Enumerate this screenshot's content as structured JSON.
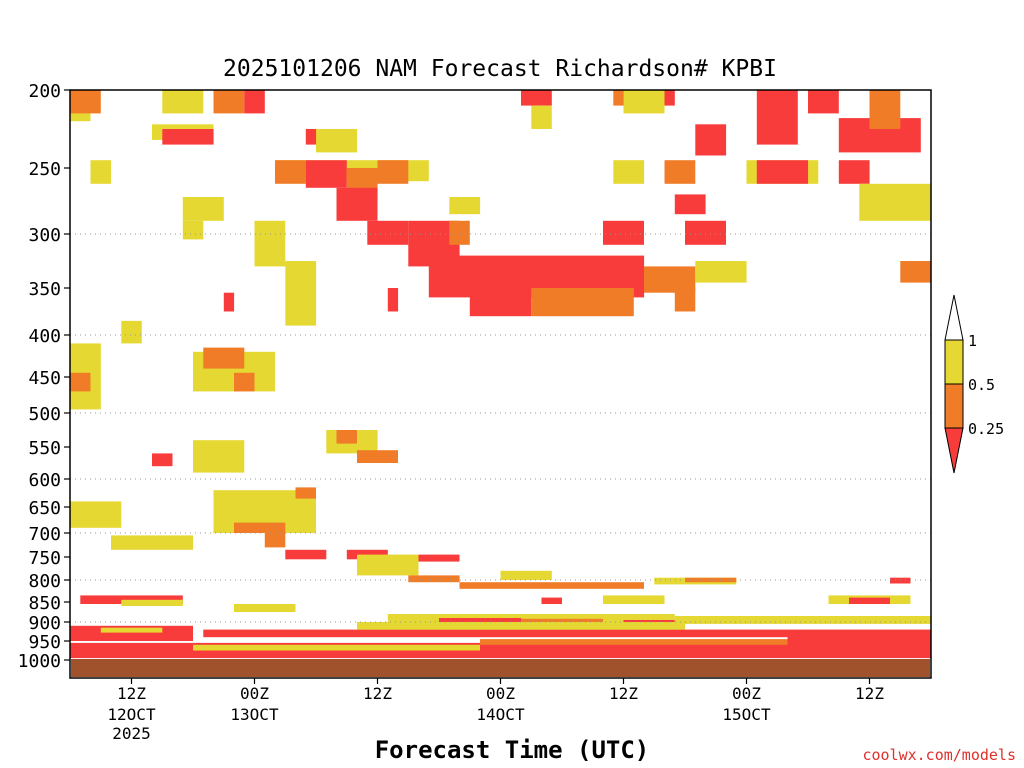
{
  "chart_data": {
    "type": "heatmap",
    "title": "2025101206 NAM Forecast Richardson# KPBI",
    "xlabel": "Forecast Time (UTC)",
    "ylabel": "",
    "credit": "coolwx.com/models",
    "x_range_hours": [
      0,
      84
    ],
    "x_ticks": [
      {
        "hour": 6,
        "label": "12Z",
        "date": "12OCT",
        "year": "2025"
      },
      {
        "hour": 18,
        "label": "00Z",
        "date": "13OCT",
        "year": ""
      },
      {
        "hour": 30,
        "label": "12Z",
        "date": "",
        "year": ""
      },
      {
        "hour": 42,
        "label": "00Z",
        "date": "14OCT",
        "year": ""
      },
      {
        "hour": 54,
        "label": "12Z",
        "date": "",
        "year": ""
      },
      {
        "hour": 66,
        "label": "00Z",
        "date": "15OCT",
        "year": ""
      },
      {
        "hour": 78,
        "label": "12Z",
        "date": "",
        "year": ""
      }
    ],
    "y_unit": "hPa",
    "y_range": [
      1000,
      200
    ],
    "y_ticks": [
      "200",
      "250",
      "300",
      "350",
      "400",
      "450",
      "500",
      "550",
      "600",
      "650",
      "700",
      "750",
      "800",
      "850",
      "900",
      "950",
      "1000"
    ],
    "y_grid_levels": [
      300,
      400,
      500,
      600,
      700,
      800,
      900
    ],
    "legend": {
      "position": "right",
      "labels": [
        "1",
        "0.5",
        "0.25"
      ],
      "bins": [
        {
          "range": "> 1",
          "color": "#ffffff"
        },
        {
          "range": "0.5 - 1",
          "color": "#e6d832"
        },
        {
          "range": "0.25 - 0.5",
          "color": "#f07c28"
        },
        {
          "range": "< 0.25",
          "color": "#f83c3c"
        }
      ]
    },
    "ground_color": "#a0522d",
    "regions": [
      {
        "bin": "0.5 - 1",
        "t": [
          0,
          2
        ],
        "p": [
          200,
          220
        ]
      },
      {
        "bin": "0.25 - 0.5",
        "t": [
          0,
          3
        ],
        "p": [
          200,
          215
        ]
      },
      {
        "bin": "0.5 - 1",
        "t": [
          9,
          13
        ],
        "p": [
          200,
          215
        ]
      },
      {
        "bin": "0.25 - 0.5",
        "t": [
          14,
          17
        ],
        "p": [
          200,
          215
        ]
      },
      {
        "bin": "< 0.25",
        "t": [
          17,
          19
        ],
        "p": [
          200,
          215
        ]
      },
      {
        "bin": "0.5 - 1",
        "t": [
          8,
          14
        ],
        "p": [
          222,
          232
        ]
      },
      {
        "bin": "< 0.25",
        "t": [
          9,
          14
        ],
        "p": [
          225,
          235
        ]
      },
      {
        "bin": "0.5 - 1",
        "t": [
          24,
          28
        ],
        "p": [
          225,
          240
        ]
      },
      {
        "bin": "< 0.25",
        "t": [
          23,
          24
        ],
        "p": [
          225,
          235
        ]
      },
      {
        "bin": "0.5 - 1",
        "t": [
          2,
          4
        ],
        "p": [
          245,
          262
        ]
      },
      {
        "bin": "0.5 - 1",
        "t": [
          20,
          35
        ],
        "p": [
          245,
          260
        ]
      },
      {
        "bin": "0.25 - 0.5",
        "t": [
          20,
          23
        ],
        "p": [
          245,
          262
        ]
      },
      {
        "bin": "< 0.25",
        "t": [
          23,
          27
        ],
        "p": [
          245,
          265
        ]
      },
      {
        "bin": "0.25 - 0.5",
        "t": [
          27,
          30
        ],
        "p": [
          250,
          275
        ]
      },
      {
        "bin": "0.25 - 0.5",
        "t": [
          30,
          33
        ],
        "p": [
          245,
          262
        ]
      },
      {
        "bin": "< 0.25",
        "t": [
          26,
          30
        ],
        "p": [
          265,
          290
        ]
      },
      {
        "bin": "0.5 - 1",
        "t": [
          11,
          15
        ],
        "p": [
          272,
          290
        ]
      },
      {
        "bin": "0.5 - 1",
        "t": [
          37,
          40
        ],
        "p": [
          272,
          285
        ]
      },
      {
        "bin": "0.5 - 1",
        "t": [
          53,
          56
        ],
        "p": [
          245,
          262
        ]
      },
      {
        "bin": "0.25 - 0.5",
        "t": [
          58,
          61
        ],
        "p": [
          245,
          262
        ]
      },
      {
        "bin": "< 0.25",
        "t": [
          59,
          62
        ],
        "p": [
          270,
          285
        ]
      },
      {
        "bin": "0.5 - 1",
        "t": [
          66,
          73
        ],
        "p": [
          245,
          262
        ]
      },
      {
        "bin": "< 0.25",
        "t": [
          67,
          72
        ],
        "p": [
          245,
          262
        ]
      },
      {
        "bin": "< 0.25",
        "t": [
          75,
          78
        ],
        "p": [
          245,
          262
        ]
      },
      {
        "bin": "0.5 - 1",
        "t": [
          77,
          84
        ],
        "p": [
          262,
          290
        ]
      },
      {
        "bin": "< 0.25",
        "t": [
          44,
          47
        ],
        "p": [
          200,
          210
        ]
      },
      {
        "bin": "0.5 - 1",
        "t": [
          45,
          47
        ],
        "p": [
          210,
          225
        ]
      },
      {
        "bin": "0.5 - 1",
        "t": [
          54,
          58
        ],
        "p": [
          200,
          215
        ]
      },
      {
        "bin": "0.25 - 0.5",
        "t": [
          53,
          54
        ],
        "p": [
          200,
          210
        ]
      },
      {
        "bin": "< 0.25",
        "t": [
          58,
          59
        ],
        "p": [
          200,
          210
        ]
      },
      {
        "bin": "< 0.25",
        "t": [
          61,
          64
        ],
        "p": [
          222,
          242
        ]
      },
      {
        "bin": "< 0.25",
        "t": [
          67,
          71
        ],
        "p": [
          200,
          235
        ]
      },
      {
        "bin": "< 0.25",
        "t": [
          72,
          75
        ],
        "p": [
          200,
          215
        ]
      },
      {
        "bin": "< 0.25",
        "t": [
          75,
          83
        ],
        "p": [
          218,
          240
        ]
      },
      {
        "bin": "0.25 - 0.5",
        "t": [
          78,
          81
        ],
        "p": [
          200,
          225
        ]
      },
      {
        "bin": "< 0.25",
        "t": [
          29,
          33
        ],
        "p": [
          290,
          310
        ]
      },
      {
        "bin": "< 0.25",
        "t": [
          33,
          38
        ],
        "p": [
          290,
          330
        ]
      },
      {
        "bin": "0.25 - 0.5",
        "t": [
          37,
          39
        ],
        "p": [
          290,
          310
        ]
      },
      {
        "bin": "< 0.25",
        "t": [
          35,
          56
        ],
        "p": [
          320,
          360
        ]
      },
      {
        "bin": "< 0.25",
        "t": [
          39,
          45
        ],
        "p": [
          355,
          380
        ]
      },
      {
        "bin": "0.25 - 0.5",
        "t": [
          45,
          55
        ],
        "p": [
          350,
          380
        ]
      },
      {
        "bin": "0.25 - 0.5",
        "t": [
          56,
          61
        ],
        "p": [
          330,
          355
        ]
      },
      {
        "bin": "0.5 - 1",
        "t": [
          61,
          66
        ],
        "p": [
          325,
          345
        ]
      },
      {
        "bin": "0.25 - 0.5",
        "t": [
          59,
          61
        ],
        "p": [
          350,
          375
        ]
      },
      {
        "bin": "< 0.25",
        "t": [
          52,
          56
        ],
        "p": [
          290,
          310
        ]
      },
      {
        "bin": "< 0.25",
        "t": [
          60,
          64
        ],
        "p": [
          290,
          310
        ]
      },
      {
        "bin": "0.25 - 0.5",
        "t": [
          81,
          84
        ],
        "p": [
          325,
          345
        ]
      },
      {
        "bin": "0.5 - 1",
        "t": [
          21,
          24
        ],
        "p": [
          325,
          390
        ]
      },
      {
        "bin": "0.5 - 1",
        "t": [
          18,
          21
        ],
        "p": [
          290,
          330
        ]
      },
      {
        "bin": "0.5 - 1",
        "t": [
          11,
          13
        ],
        "p": [
          290,
          305
        ]
      },
      {
        "bin": "< 0.25",
        "t": [
          15,
          16
        ],
        "p": [
          355,
          375
        ]
      },
      {
        "bin": "< 0.25",
        "t": [
          31,
          32
        ],
        "p": [
          350,
          375
        ]
      },
      {
        "bin": "0.5 - 1",
        "t": [
          12,
          20
        ],
        "p": [
          420,
          470
        ]
      },
      {
        "bin": "0.25 - 0.5",
        "t": [
          13,
          17
        ],
        "p": [
          415,
          440
        ]
      },
      {
        "bin": "0.25 - 0.5",
        "t": [
          16,
          18
        ],
        "p": [
          445,
          470
        ]
      },
      {
        "bin": "0.5 - 1",
        "t": [
          5,
          7
        ],
        "p": [
          385,
          410
        ]
      },
      {
        "bin": "0.5 - 1",
        "t": [
          0,
          3
        ],
        "p": [
          410,
          495
        ]
      },
      {
        "bin": "0.25 - 0.5",
        "t": [
          0,
          2
        ],
        "p": [
          445,
          470
        ]
      },
      {
        "bin": "0.5 - 1",
        "t": [
          25,
          30
        ],
        "p": [
          525,
          560
        ]
      },
      {
        "bin": "0.25 - 0.5",
        "t": [
          26,
          28
        ],
        "p": [
          525,
          545
        ]
      },
      {
        "bin": "0.25 - 0.5",
        "t": [
          28,
          32
        ],
        "p": [
          555,
          575
        ]
      },
      {
        "bin": "0.5 - 1",
        "t": [
          12,
          17
        ],
        "p": [
          540,
          590
        ]
      },
      {
        "bin": "< 0.25",
        "t": [
          8,
          10
        ],
        "p": [
          560,
          580
        ]
      },
      {
        "bin": "0.5 - 1",
        "t": [
          14,
          24
        ],
        "p": [
          620,
          700
        ]
      },
      {
        "bin": "0.25 - 0.5",
        "t": [
          22,
          24
        ],
        "p": [
          615,
          635
        ]
      },
      {
        "bin": "0.25 - 0.5",
        "t": [
          16,
          21
        ],
        "p": [
          680,
          700
        ]
      },
      {
        "bin": "0.5 - 1",
        "t": [
          0,
          5
        ],
        "p": [
          640,
          690
        ]
      },
      {
        "bin": "0.5 - 1",
        "t": [
          4,
          12
        ],
        "p": [
          705,
          735
        ]
      },
      {
        "bin": "0.25 - 0.5",
        "t": [
          19,
          21
        ],
        "p": [
          700,
          730
        ]
      },
      {
        "bin": "< 0.25",
        "t": [
          21,
          25
        ],
        "p": [
          735,
          755
        ]
      },
      {
        "bin": "< 0.25",
        "t": [
          27,
          31
        ],
        "p": [
          735,
          755
        ]
      },
      {
        "bin": "0.5 - 1",
        "t": [
          28,
          34
        ],
        "p": [
          745,
          790
        ]
      },
      {
        "bin": "< 0.25",
        "t": [
          34,
          38
        ],
        "p": [
          745,
          760
        ]
      },
      {
        "bin": "0.25 - 0.5",
        "t": [
          33,
          38
        ],
        "p": [
          790,
          805
        ]
      },
      {
        "bin": "0.5 - 1",
        "t": [
          42,
          47
        ],
        "p": [
          780,
          800
        ]
      },
      {
        "bin": "0.5 - 1",
        "t": [
          57,
          65
        ],
        "p": [
          795,
          810
        ]
      },
      {
        "bin": "0.25 - 0.5",
        "t": [
          60,
          65
        ],
        "p": [
          795,
          805
        ]
      },
      {
        "bin": "< 0.25",
        "t": [
          80,
          82
        ],
        "p": [
          795,
          808
        ]
      },
      {
        "bin": "0.25 - 0.5",
        "t": [
          38,
          56
        ],
        "p": [
          805,
          820
        ]
      },
      {
        "bin": "< 0.25",
        "t": [
          1,
          11
        ],
        "p": [
          835,
          855
        ]
      },
      {
        "bin": "0.5 - 1",
        "t": [
          5,
          11
        ],
        "p": [
          845,
          860
        ]
      },
      {
        "bin": "0.5 - 1",
        "t": [
          16,
          22
        ],
        "p": [
          855,
          875
        ]
      },
      {
        "bin": "< 0.25",
        "t": [
          46,
          48
        ],
        "p": [
          840,
          855
        ]
      },
      {
        "bin": "0.5 - 1",
        "t": [
          52,
          58
        ],
        "p": [
          835,
          855
        ]
      },
      {
        "bin": "0.5 - 1",
        "t": [
          74,
          82
        ],
        "p": [
          835,
          855
        ]
      },
      {
        "bin": "< 0.25",
        "t": [
          76,
          80
        ],
        "p": [
          840,
          855
        ]
      },
      {
        "bin": "0.5 - 1",
        "t": [
          31,
          59
        ],
        "p": [
          880,
          905
        ]
      },
      {
        "bin": "< 0.25",
        "t": [
          36,
          44
        ],
        "p": [
          890,
          905
        ]
      },
      {
        "bin": "0.25 - 0.5",
        "t": [
          44,
          52
        ],
        "p": [
          892,
          910
        ]
      },
      {
        "bin": "< 0.25",
        "t": [
          54,
          59
        ],
        "p": [
          895,
          910
        ]
      },
      {
        "bin": "0.5 - 1",
        "t": [
          59,
          84
        ],
        "p": [
          885,
          905
        ]
      },
      {
        "bin": "< 0.25",
        "t": [
          0,
          12
        ],
        "p": [
          910,
          950
        ]
      },
      {
        "bin": "0.5 - 1",
        "t": [
          3,
          9
        ],
        "p": [
          915,
          928
        ]
      },
      {
        "bin": "< 0.25",
        "t": [
          13,
          84
        ],
        "p": [
          920,
          940
        ]
      },
      {
        "bin": "0.5 - 1",
        "t": [
          28,
          60
        ],
        "p": [
          900,
          920
        ]
      },
      {
        "bin": "< 0.25",
        "t": [
          0,
          84
        ],
        "p": [
          955,
          995
        ]
      },
      {
        "bin": "0.5 - 1",
        "t": [
          12,
          40
        ],
        "p": [
          960,
          975
        ]
      },
      {
        "bin": "0.25 - 0.5",
        "t": [
          40,
          70
        ],
        "p": [
          945,
          960
        ]
      },
      {
        "bin": "< 0.25",
        "t": [
          70,
          84
        ],
        "p": [
          935,
          970
        ]
      }
    ]
  }
}
